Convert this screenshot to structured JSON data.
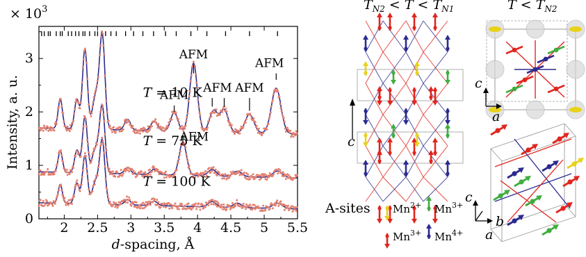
{
  "chart_data": {
    "type": "line",
    "multiplier_label": "× 10",
    "multiplier_exp": "3",
    "xlabel_italic": "d",
    "xlabel_rest": "-spacing, Å",
    "ylabel": "Intensity, a. u.",
    "xlim": [
      1.62,
      5.5
    ],
    "ylim": [
      0,
      3.6
    ],
    "xticks": [
      2,
      2.5,
      3,
      3.5,
      4,
      4.5,
      5,
      5.5
    ],
    "xtick_labels": [
      "2",
      "2.5",
      "3",
      "3.5",
      "4",
      "4.5",
      "5",
      "5.5"
    ],
    "yticks": [
      0,
      1,
      2,
      3
    ],
    "ytick_labels": [
      "0",
      "1",
      "2",
      "3"
    ],
    "grid": false,
    "legend": "none",
    "colors": {
      "data_points": "#e3806f",
      "fit_line": "#2e2a8c",
      "tick_marks": "#000000"
    },
    "reflection_ticks": [
      1.66,
      1.7,
      1.76,
      1.79,
      1.88,
      1.94,
      1.97,
      2.06,
      2.11,
      2.17,
      2.22,
      2.28,
      2.31,
      2.38,
      2.46,
      2.5,
      2.56,
      2.62,
      2.7,
      2.78,
      2.92,
      3.04,
      3.18,
      3.34,
      3.52,
      3.68,
      3.9,
      4.14,
      4.42,
      4.78,
      5.2
    ],
    "series": [
      {
        "label": "T = 10 K",
        "baseline": 1.7,
        "peaks": [
          {
            "x": 1.94,
            "h": 0.55
          },
          {
            "x": 2.19,
            "h": 0.55
          },
          {
            "x": 2.31,
            "h": 1.5
          },
          {
            "x": 2.44,
            "h": 0.3
          },
          {
            "x": 2.49,
            "h": 0.45
          },
          {
            "x": 2.57,
            "h": 1.75
          },
          {
            "x": 2.95,
            "h": 0.2
          },
          {
            "x": 3.35,
            "h": 0.18
          },
          {
            "x": 3.65,
            "h": 0.35
          },
          {
            "x": 3.94,
            "h": 1.28
          },
          {
            "x": 4.24,
            "h": 0.4
          },
          {
            "x": 4.4,
            "h": 0.42
          },
          {
            "x": 4.78,
            "h": 0.35
          },
          {
            "x": 5.18,
            "h": 0.85
          }
        ]
      },
      {
        "label": "T = 75 K",
        "baseline": 0.88,
        "peaks": [
          {
            "x": 1.94,
            "h": 0.4
          },
          {
            "x": 2.19,
            "h": 0.42
          },
          {
            "x": 2.31,
            "h": 1.05
          },
          {
            "x": 2.44,
            "h": 0.25
          },
          {
            "x": 2.49,
            "h": 0.3
          },
          {
            "x": 2.57,
            "h": 1.25
          },
          {
            "x": 2.95,
            "h": 0.12
          },
          {
            "x": 3.35,
            "h": 0.1
          },
          {
            "x": 3.78,
            "h": 0.62
          },
          {
            "x": 4.22,
            "h": 0.12
          },
          {
            "x": 4.6,
            "h": 0.1
          },
          {
            "x": 5.2,
            "h": 0.12
          }
        ]
      },
      {
        "label": "T = 100 K",
        "baseline": 0.3,
        "peaks": [
          {
            "x": 1.94,
            "h": 0.35
          },
          {
            "x": 2.19,
            "h": 0.38
          },
          {
            "x": 2.31,
            "h": 0.9
          },
          {
            "x": 2.44,
            "h": 0.22
          },
          {
            "x": 2.49,
            "h": 0.28
          },
          {
            "x": 2.57,
            "h": 1.18
          },
          {
            "x": 2.95,
            "h": 0.1
          },
          {
            "x": 3.35,
            "h": 0.08
          },
          {
            "x": 4.22,
            "h": 0.1
          },
          {
            "x": 4.6,
            "h": 0.08
          },
          {
            "x": 5.2,
            "h": 0.1
          }
        ]
      }
    ],
    "temperature_labels": [
      {
        "var": "T",
        "text": " = 10 K",
        "x": 3.18,
        "y": 2.28
      },
      {
        "var": "T",
        "text": " = 75 K",
        "x": 3.18,
        "y": 1.38
      },
      {
        "var": "T",
        "text": " = 100 K",
        "x": 3.18,
        "y": 0.62
      }
    ],
    "annotations": [
      {
        "text": "AFM",
        "x": 3.94,
        "y": 3.0,
        "arrow_x": 3.94,
        "arrow_top": 2.88,
        "arrow_bottom": 2.72
      },
      {
        "text": "AFM",
        "x": 3.65,
        "y": 2.24,
        "arrow_x": 3.65,
        "arrow_top": 2.12,
        "arrow_bottom": 2.0
      },
      {
        "text": "AFM",
        "x": 4.3,
        "y": 2.38,
        "arrow_x": 4.22,
        "arrow_top": 2.26,
        "arrow_bottom": 2.1
      },
      {
        "text": "",
        "x": 0,
        "y": 0,
        "arrow_x": 4.4,
        "arrow_top": 2.26,
        "arrow_bottom": 2.1
      },
      {
        "text": "AFM",
        "x": 4.78,
        "y": 2.38,
        "arrow_x": 4.78,
        "arrow_top": 2.26,
        "arrow_bottom": 2.02
      },
      {
        "text": "AFM",
        "x": 5.08,
        "y": 2.84,
        "arrow_x": 5.18,
        "arrow_top": 2.72,
        "arrow_bottom": 2.6
      },
      {
        "text": "AFM",
        "x": 3.95,
        "y": 1.46,
        "arrow_x": 3.78,
        "arrow_top": 1.56,
        "arrow_bottom": 1.4
      }
    ]
  },
  "structures": {
    "title_left": {
      "var": "T",
      "sub1": "N2",
      "mid": " < ",
      "var2": "T",
      "mid2": " < ",
      "var3": "T",
      "sub3": "N1"
    },
    "title_right": {
      "var": "T",
      "mid": " < ",
      "var2": "T",
      "sub2": "N2"
    },
    "axis_c": "c",
    "axis_a": "a",
    "axis_b": "b",
    "legend_title": "A-sites",
    "legend": [
      {
        "ion": "Mn",
        "charge": "2+",
        "color": "#e8d21a"
      },
      {
        "ion": "Mn",
        "charge": "3+",
        "color": "#3fae3f"
      },
      {
        "ion": "Mn",
        "charge": "3+",
        "color": "#e0251e"
      },
      {
        "ion": "Mn",
        "charge": "4+",
        "color": "#2b2a8f"
      }
    ],
    "colors": {
      "red": "#e0251e",
      "blue": "#2b2a8f",
      "green": "#3fae3f",
      "yellow": "#e8d21a",
      "cell": "#9a9a9a"
    }
  }
}
